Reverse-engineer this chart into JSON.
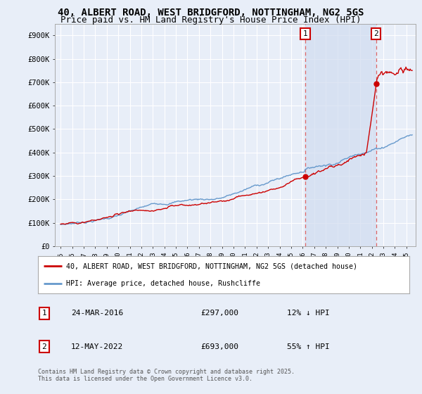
{
  "title": "40, ALBERT ROAD, WEST BRIDGFORD, NOTTINGHAM, NG2 5GS",
  "subtitle": "Price paid vs. HM Land Registry's House Price Index (HPI)",
  "ylim": [
    0,
    950000
  ],
  "yticks": [
    0,
    100000,
    200000,
    300000,
    400000,
    500000,
    600000,
    700000,
    800000,
    900000
  ],
  "ytick_labels": [
    "£0",
    "£100K",
    "£200K",
    "£300K",
    "£400K",
    "£500K",
    "£600K",
    "£700K",
    "£800K",
    "£900K"
  ],
  "background_color": "#e8eef8",
  "plot_bg_color": "#e8eef8",
  "shade_color": "#d0dcf0",
  "grid_color": "#ffffff",
  "red_line_color": "#cc0000",
  "blue_line_color": "#6699cc",
  "vline_color": "#dd6666",
  "marker1_year": 2016.23,
  "marker1_price": 297000,
  "marker2_year": 2022.37,
  "marker2_price": 693000,
  "legend_line1": "40, ALBERT ROAD, WEST BRIDGFORD, NOTTINGHAM, NG2 5GS (detached house)",
  "legend_line2": "HPI: Average price, detached house, Rushcliffe",
  "table_row1_num": "1",
  "table_row1_date": "24-MAR-2016",
  "table_row1_price": "£297,000",
  "table_row1_hpi": "12% ↓ HPI",
  "table_row2_num": "2",
  "table_row2_date": "12-MAY-2022",
  "table_row2_price": "£693,000",
  "table_row2_hpi": "55% ↑ HPI",
  "footer": "Contains HM Land Registry data © Crown copyright and database right 2025.\nThis data is licensed under the Open Government Licence v3.0.",
  "title_fontsize": 10,
  "subtitle_fontsize": 9
}
